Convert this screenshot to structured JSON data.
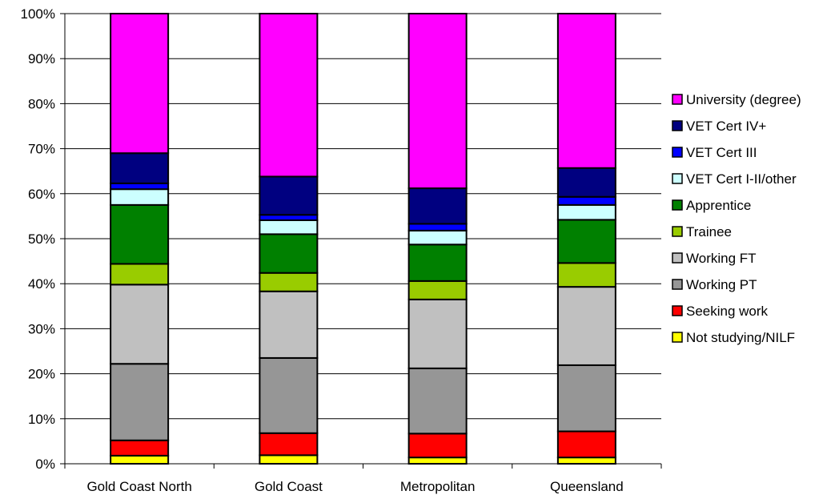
{
  "chart_data": {
    "type": "bar",
    "stacked": true,
    "percent": true,
    "title": "",
    "xlabel": "",
    "ylabel": "",
    "ylim": [
      0,
      100
    ],
    "yticks": [
      "0%",
      "10%",
      "20%",
      "30%",
      "40%",
      "50%",
      "60%",
      "70%",
      "80%",
      "90%",
      "100%"
    ],
    "grid": "horizontal",
    "legend_position": "right",
    "categories": [
      "Gold Coast North",
      "Gold Coast",
      "Metropolitan",
      "Queensland"
    ],
    "series": [
      {
        "name": "Not studying/NILF",
        "color": "#FFFF00",
        "values": [
          1.8,
          1.9,
          1.4,
          1.4
        ]
      },
      {
        "name": "Seeking work",
        "color": "#FF0000",
        "values": [
          3.4,
          4.9,
          5.3,
          5.8
        ]
      },
      {
        "name": "Working PT",
        "color": "#969696",
        "values": [
          17.0,
          16.7,
          14.5,
          14.7
        ]
      },
      {
        "name": "Working FT",
        "color": "#C0C0C0",
        "values": [
          17.6,
          14.8,
          15.3,
          17.4
        ]
      },
      {
        "name": "Trainee",
        "color": "#99CC00",
        "values": [
          4.6,
          4.1,
          4.1,
          5.3
        ]
      },
      {
        "name": "Apprentice",
        "color": "#008000",
        "values": [
          13.1,
          8.6,
          8.1,
          9.6
        ]
      },
      {
        "name": "VET Cert I-II/other",
        "color": "#CCFFFF",
        "values": [
          3.5,
          3.1,
          3.1,
          3.3
        ]
      },
      {
        "name": "VET Cert III",
        "color": "#0000FF",
        "values": [
          1.3,
          1.2,
          1.5,
          1.8
        ]
      },
      {
        "name": "VET Cert IV+",
        "color": "#000080",
        "values": [
          6.7,
          8.5,
          7.9,
          6.4
        ]
      },
      {
        "name": "University (degree)",
        "color": "#FF00FF",
        "values": [
          31.0,
          36.2,
          38.8,
          34.3
        ]
      }
    ]
  }
}
